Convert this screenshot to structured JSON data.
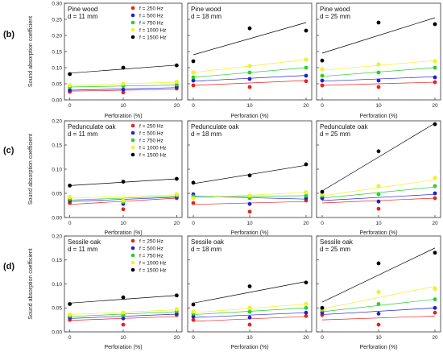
{
  "legend_title_prefix": "f",
  "chart_data": [
    {
      "row_label": "(b)",
      "ylabel": "Sound absorption coefficient",
      "ylim": [
        0,
        0.3
      ],
      "yticks": [
        "0.00",
        "0.05",
        "0.10",
        "0.15",
        "0.20",
        "0.25",
        "0.30"
      ],
      "legend": [
        "f = 250 Hz",
        "f = 500 Hz",
        "f = 750 Hz",
        "f = 1000 Hz",
        "f = 1500 Hz"
      ],
      "colors": [
        "#e8221c",
        "#1f1fd6",
        "#25d12a",
        "#f2f22a",
        "#000000"
      ],
      "panels": [
        {
          "type": "scatter",
          "title": "Pine wood",
          "subtitle": "d = 11 mm",
          "x": [
            0,
            10,
            20
          ],
          "xlabel": "Perforation (%)",
          "xlim": [
            -1,
            21
          ],
          "series": [
            {
              "name": "f = 250 Hz",
              "values": [
                0.025,
                0.023,
                0.035
              ],
              "fit": [
                0.027,
                0.033
              ]
            },
            {
              "name": "f = 500 Hz",
              "values": [
                0.03,
                0.032,
                0.04
              ],
              "fit": [
                0.03,
                0.038
              ]
            },
            {
              "name": "f = 750 Hz",
              "values": [
                0.04,
                0.043,
                0.047
              ],
              "fit": [
                0.04,
                0.046
              ]
            },
            {
              "name": "f = 1000 Hz",
              "values": [
                0.045,
                0.05,
                0.056
              ],
              "fit": [
                0.045,
                0.055
              ]
            },
            {
              "name": "f = 1500 Hz",
              "values": [
                0.08,
                0.1,
                0.107
              ],
              "fit": [
                0.083,
                0.108
              ]
            }
          ]
        },
        {
          "type": "scatter",
          "title": "Pine wood",
          "subtitle": "d = 18 mm",
          "x": [
            0,
            10,
            20
          ],
          "xlabel": "Perforation (%)",
          "xlim": [
            -1,
            21
          ],
          "series": [
            {
              "name": "f = 250 Hz",
              "values": [
                0.045,
                0.04,
                0.058
              ],
              "fit": [
                0.045,
                0.06
              ]
            },
            {
              "name": "f = 500 Hz",
              "values": [
                0.06,
                0.065,
                0.075
              ],
              "fit": [
                0.058,
                0.076
              ]
            },
            {
              "name": "f = 750 Hz",
              "values": [
                0.07,
                0.085,
                0.1
              ],
              "fit": [
                0.07,
                0.1
              ]
            },
            {
              "name": "f = 1000 Hz",
              "values": [
                0.085,
                0.105,
                0.125
              ],
              "fit": [
                0.085,
                0.125
              ]
            },
            {
              "name": "f = 1500 Hz",
              "values": [
                0.12,
                0.222,
                0.215
              ],
              "fit": [
                0.14,
                0.24
              ]
            }
          ]
        },
        {
          "type": "scatter",
          "title": "Pine wood",
          "subtitle": "d = 25 mm",
          "x": [
            0,
            10,
            20
          ],
          "xlabel": "Perforation (%)",
          "xlim": [
            -1,
            21
          ],
          "series": [
            {
              "name": "f = 250 Hz",
              "values": [
                0.045,
                0.04,
                0.055
              ],
              "fit": [
                0.045,
                0.055
              ]
            },
            {
              "name": "f = 500 Hz",
              "values": [
                0.06,
                0.06,
                0.07
              ],
              "fit": [
                0.058,
                0.072
              ]
            },
            {
              "name": "f = 750 Hz",
              "values": [
                0.075,
                0.085,
                0.1
              ],
              "fit": [
                0.073,
                0.1
              ]
            },
            {
              "name": "f = 1000 Hz",
              "values": [
                0.095,
                0.11,
                0.12
              ],
              "fit": [
                0.092,
                0.122
              ]
            },
            {
              "name": "f = 1500 Hz",
              "values": [
                0.122,
                0.24,
                0.235
              ],
              "fit": [
                0.145,
                0.255
              ]
            }
          ]
        }
      ]
    },
    {
      "row_label": "(c)",
      "ylabel": "Sound absorption coefficient",
      "ylim": [
        0,
        0.2
      ],
      "yticks": [
        "0.00",
        "0.05",
        "0.10",
        "0.15",
        "0.20"
      ],
      "legend": [
        "f = 250 Hz",
        "f = 500 Hz",
        "f = 750 Hz",
        "f = 1000 Hz",
        "f = 1500 Hz"
      ],
      "colors": [
        "#e8221c",
        "#1f1fd6",
        "#25d12a",
        "#f2f22a",
        "#000000"
      ],
      "panels": [
        {
          "type": "scatter",
          "title": "Pedunculate oak",
          "subtitle": "d = 11 mm",
          "x": [
            0,
            10,
            20
          ],
          "xlabel": "Perforation (%)",
          "xlim": [
            -1,
            21
          ],
          "series": [
            {
              "name": "f = 250 Hz",
              "values": [
                0.03,
                0.017,
                0.04
              ],
              "fit": [
                0.027,
                0.04
              ]
            },
            {
              "name": "f = 500 Hz",
              "values": [
                0.035,
                0.028,
                0.042
              ],
              "fit": [
                0.033,
                0.042
              ]
            },
            {
              "name": "f = 750 Hz",
              "values": [
                0.038,
                0.032,
                0.045
              ],
              "fit": [
                0.036,
                0.044
              ]
            },
            {
              "name": "f = 1000 Hz",
              "values": [
                0.042,
                0.035,
                0.048
              ],
              "fit": [
                0.04,
                0.047
              ]
            },
            {
              "name": "f = 1500 Hz",
              "values": [
                0.066,
                0.074,
                0.08
              ],
              "fit": [
                0.066,
                0.08
              ]
            }
          ]
        },
        {
          "type": "scatter",
          "title": "Pedunculate oak",
          "subtitle": "d = 18 mm",
          "x": [
            0,
            10,
            20
          ],
          "xlabel": "Perforation (%)",
          "xlim": [
            -1,
            21
          ],
          "series": [
            {
              "name": "f = 250 Hz",
              "values": [
                0.03,
                0.012,
                0.035
              ],
              "fit": [
                0.027,
                0.033
              ]
            },
            {
              "name": "f = 500 Hz",
              "values": [
                0.048,
                0.028,
                0.04
              ],
              "fit": [
                0.044,
                0.038
              ]
            },
            {
              "name": "f = 750 Hz",
              "values": [
                0.044,
                0.04,
                0.045
              ],
              "fit": [
                0.043,
                0.045
              ]
            },
            {
              "name": "f = 1000 Hz",
              "values": [
                0.04,
                0.045,
                0.052
              ],
              "fit": [
                0.04,
                0.052
              ]
            },
            {
              "name": "f = 1500 Hz",
              "values": [
                0.072,
                0.087,
                0.11
              ],
              "fit": [
                0.07,
                0.108
              ]
            }
          ]
        },
        {
          "type": "scatter",
          "title": "Pedunculate oak",
          "subtitle": "d = 25 mm",
          "x": [
            0,
            10,
            20
          ],
          "xlabel": "Perforation (%)",
          "xlim": [
            -1,
            21
          ],
          "series": [
            {
              "name": "f = 250 Hz",
              "values": [
                0.04,
                0.018,
                0.04
              ],
              "fit": [
                0.03,
                0.04
              ]
            },
            {
              "name": "f = 500 Hz",
              "values": [
                0.04,
                0.033,
                0.05
              ],
              "fit": [
                0.035,
                0.048
              ]
            },
            {
              "name": "f = 750 Hz",
              "values": [
                0.045,
                0.048,
                0.065
              ],
              "fit": [
                0.04,
                0.063
              ]
            },
            {
              "name": "f = 1000 Hz",
              "values": [
                0.048,
                0.065,
                0.082
              ],
              "fit": [
                0.045,
                0.078
              ]
            },
            {
              "name": "f = 1500 Hz",
              "values": [
                0.053,
                0.137,
                0.193
              ],
              "fit": [
                0.055,
                0.195
              ]
            }
          ]
        }
      ]
    },
    {
      "row_label": "(d)",
      "ylabel": "Sound absorption coefficient",
      "ylim": [
        0,
        0.2
      ],
      "yticks": [
        "0.00",
        "0.05",
        "0.10",
        "0.15",
        "0.20"
      ],
      "legend": [
        "f = 250 Hz",
        "f = 500 Hz",
        "f = 750 Hz",
        "f = 1000 Hz",
        "f = 1500 Hz"
      ],
      "colors": [
        "#e8221c",
        "#1f1fd6",
        "#25d12a",
        "#f2f22a",
        "#000000"
      ],
      "panels": [
        {
          "type": "scatter",
          "title": "Sessile oak",
          "subtitle": "d = 11 mm",
          "x": [
            0,
            10,
            20
          ],
          "xlabel": "Perforation (%)",
          "xlim": [
            -1,
            21
          ],
          "series": [
            {
              "name": "f = 250 Hz",
              "values": [
                0.025,
                0.015,
                0.035
              ],
              "fit": [
                0.024,
                0.032
              ]
            },
            {
              "name": "f = 500 Hz",
              "values": [
                0.03,
                0.028,
                0.038
              ],
              "fit": [
                0.028,
                0.037
              ]
            },
            {
              "name": "f = 750 Hz",
              "values": [
                0.033,
                0.035,
                0.043
              ],
              "fit": [
                0.032,
                0.042
              ]
            },
            {
              "name": "f = 1000 Hz",
              "values": [
                0.036,
                0.04,
                0.047
              ],
              "fit": [
                0.036,
                0.046
              ]
            },
            {
              "name": "f = 1500 Hz",
              "values": [
                0.058,
                0.072,
                0.076
              ],
              "fit": [
                0.06,
                0.076
              ]
            }
          ]
        },
        {
          "type": "scatter",
          "title": "Sessile oak",
          "subtitle": "d = 18 mm",
          "x": [
            0,
            10,
            20
          ],
          "xlabel": "Perforation (%)",
          "xlim": [
            -1,
            21
          ],
          "series": [
            {
              "name": "f = 250 Hz",
              "values": [
                0.025,
                0.015,
                0.033
              ],
              "fit": [
                0.022,
                0.032
              ]
            },
            {
              "name": "f = 500 Hz",
              "values": [
                0.032,
                0.03,
                0.04
              ],
              "fit": [
                0.03,
                0.04
              ]
            },
            {
              "name": "f = 750 Hz",
              "values": [
                0.038,
                0.042,
                0.05
              ],
              "fit": [
                0.036,
                0.05
              ]
            },
            {
              "name": "f = 1000 Hz",
              "values": [
                0.042,
                0.05,
                0.058
              ],
              "fit": [
                0.04,
                0.058
              ]
            },
            {
              "name": "f = 1500 Hz",
              "values": [
                0.057,
                0.095,
                0.103
              ],
              "fit": [
                0.06,
                0.105
              ]
            }
          ]
        },
        {
          "type": "scatter",
          "title": "Sessile oak",
          "subtitle": "d = 25 mm",
          "x": [
            0,
            10,
            20
          ],
          "xlabel": "Perforation (%)",
          "xlim": [
            -1,
            21
          ],
          "series": [
            {
              "name": "f = 250 Hz",
              "values": [
                0.035,
                0.015,
                0.04
              ],
              "fit": [
                0.025,
                0.033
              ]
            },
            {
              "name": "f = 500 Hz",
              "values": [
                0.04,
                0.038,
                0.05
              ],
              "fit": [
                0.036,
                0.05
              ]
            },
            {
              "name": "f = 750 Hz",
              "values": [
                0.045,
                0.058,
                0.068
              ],
              "fit": [
                0.042,
                0.068
              ]
            },
            {
              "name": "f = 1000 Hz",
              "values": [
                0.048,
                0.083,
                0.09
              ],
              "fit": [
                0.048,
                0.095
              ]
            },
            {
              "name": "f = 1500 Hz",
              "values": [
                0.05,
                0.143,
                0.165
              ],
              "fit": [
                0.062,
                0.175
              ]
            }
          ]
        }
      ]
    }
  ]
}
